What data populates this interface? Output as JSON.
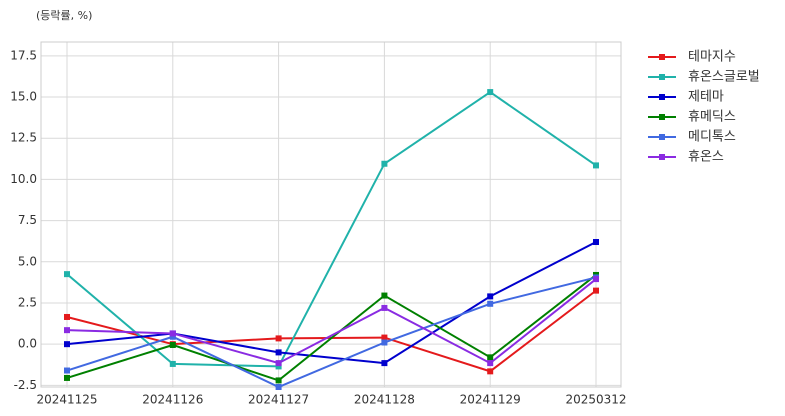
{
  "chart_data": {
    "type": "line",
    "y_label": "(등락률, %)",
    "categories": [
      "20241125",
      "20241126",
      "20241127",
      "20241128",
      "20241129",
      "20250312"
    ],
    "series": [
      {
        "name": "테마지수",
        "color": "#e41a1c",
        "values": [
          1.65,
          0.0,
          0.35,
          0.4,
          -1.65,
          3.25
        ]
      },
      {
        "name": "휴온스글로벌",
        "color": "#20b2aa",
        "values": [
          4.25,
          -1.2,
          -1.35,
          10.95,
          15.3,
          10.85
        ]
      },
      {
        "name": "제테마",
        "color": "#0000cd",
        "values": [
          0.0,
          0.65,
          -0.5,
          -1.15,
          2.9,
          6.2
        ]
      },
      {
        "name": "휴메딕스",
        "color": "#008000",
        "values": [
          -2.05,
          -0.05,
          -2.2,
          2.95,
          -0.8,
          4.2
        ]
      },
      {
        "name": "메디톡스",
        "color": "#4169e1",
        "values": [
          -1.6,
          0.45,
          -2.6,
          0.1,
          2.45,
          4.05
        ]
      },
      {
        "name": "휴온스",
        "color": "#8a2be2",
        "values": [
          0.85,
          0.65,
          -1.15,
          2.2,
          -1.15,
          3.95
        ]
      }
    ],
    "ylim": [
      -2.6,
      18.34
    ],
    "yticks": [
      {
        "value": -2.5,
        "label": "-2.5"
      },
      {
        "value": 0,
        "label": "0.0"
      },
      {
        "value": 2.5,
        "label": "2.5"
      },
      {
        "value": 5,
        "label": "5.0"
      },
      {
        "value": 7.5,
        "label": "7.5"
      },
      {
        "value": 10,
        "label": "10.0"
      },
      {
        "value": 12.5,
        "label": "12.5"
      },
      {
        "value": 15,
        "label": "15.0"
      },
      {
        "value": 17.5,
        "label": "17.5"
      }
    ],
    "grid": true,
    "legend": "outside-right"
  }
}
